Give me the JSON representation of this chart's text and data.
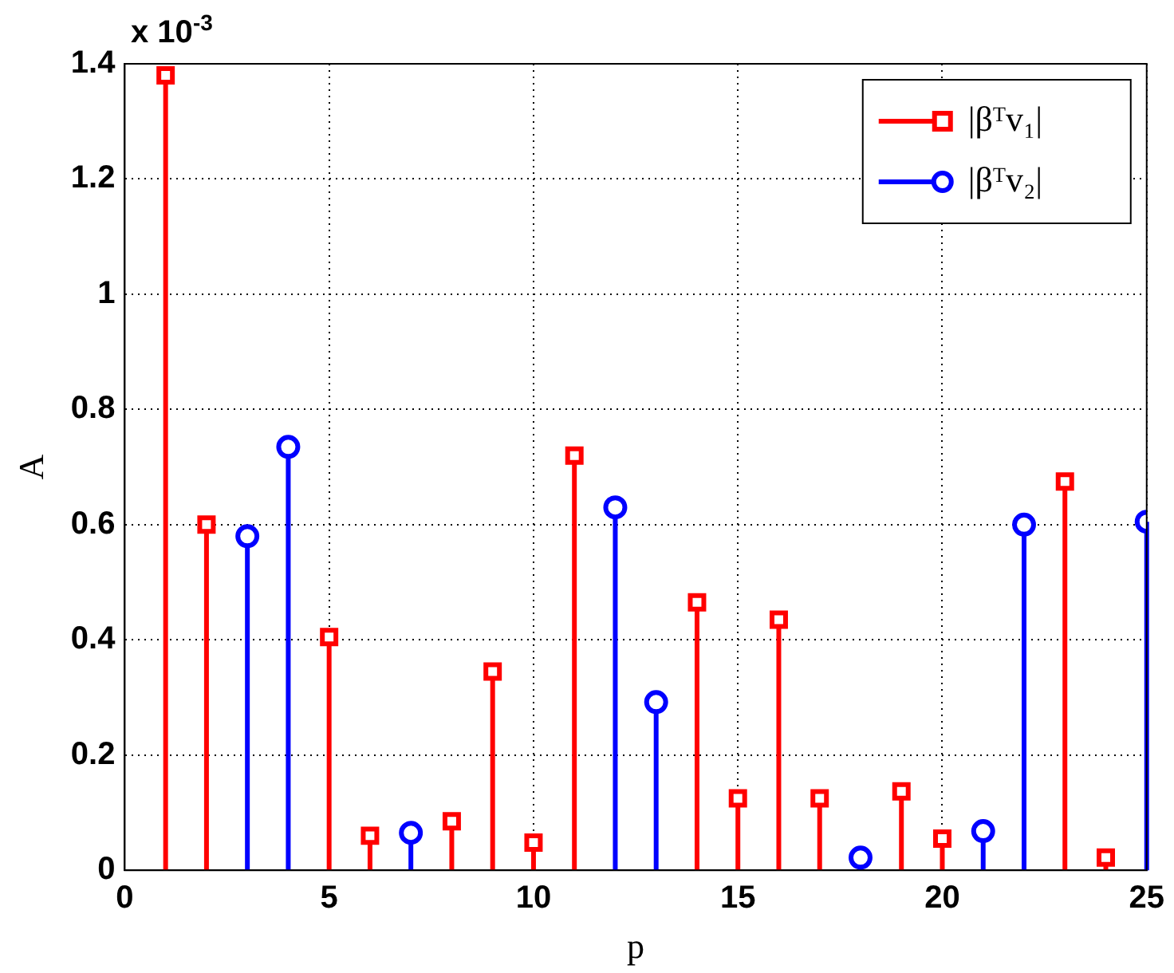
{
  "chart_data": {
    "type": "lollipop",
    "xlabel": "p",
    "ylabel": "A",
    "annotations": [
      "x 10$^{-3}$"
    ],
    "xlim": [
      0,
      25
    ],
    "xticks": [
      0,
      5,
      10,
      15,
      20,
      25
    ],
    "ylim": [
      0,
      1.4
    ],
    "yticks": [
      0,
      0.2,
      0.4,
      0.6,
      0.8,
      1,
      1.2,
      1.4
    ],
    "grid": true,
    "legend": "top right",
    "line_style": "solid",
    "series": [
      {
        "name": "|βᵀv₁|",
        "color": "#ff0000",
        "marker": "square",
        "x": [
          1,
          2,
          5,
          6,
          8,
          9,
          10,
          11,
          14,
          15,
          16,
          17,
          19,
          20,
          23,
          24
        ],
        "values": [
          1.38,
          0.6,
          0.405,
          0.06,
          0.085,
          0.345,
          0.048,
          0.72,
          0.465,
          0.125,
          0.435,
          0.125,
          0.137,
          0.055,
          0.675,
          0.022
        ]
      },
      {
        "name": "|βᵀv₂|",
        "color": "#0000ff",
        "marker": "circle",
        "x": [
          3,
          4,
          7,
          12,
          13,
          18,
          21,
          22,
          25
        ],
        "values": [
          0.58,
          0.735,
          0.065,
          0.63,
          0.292,
          0.022,
          0.068,
          0.6,
          0.605
        ]
      }
    ]
  }
}
